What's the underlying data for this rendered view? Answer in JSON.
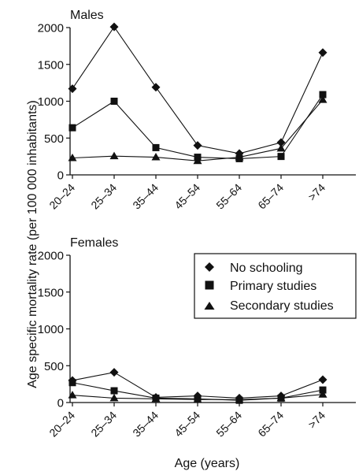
{
  "figure": {
    "ylabel": "Age specific mortality rate (per 100 000 inhabitants)",
    "xlabel": "Age (years)"
  },
  "legend": {
    "placement": "top-right of lower panel",
    "entries": [
      {
        "label": "No schooling",
        "marker": "diamond"
      },
      {
        "label": "Primary studies",
        "marker": "square"
      },
      {
        "label": "Secondary studies",
        "marker": "triangle"
      }
    ]
  },
  "chart_data": [
    {
      "type": "line",
      "title": "Males",
      "categories": [
        "20–24",
        "25–34",
        "35–44",
        "45–54",
        "55–64",
        "65–74",
        ">74"
      ],
      "ylim": [
        0,
        2000
      ],
      "yticks": [
        0,
        500,
        1000,
        1500,
        2000
      ],
      "grid": false,
      "series": [
        {
          "name": "No schooling",
          "marker": "diamond",
          "values": [
            1170,
            2010,
            1190,
            400,
            290,
            440,
            1660
          ]
        },
        {
          "name": "Primary studies",
          "marker": "square",
          "values": [
            640,
            1000,
            370,
            240,
            220,
            250,
            1090
          ]
        },
        {
          "name": "Secondary studies",
          "marker": "triangle",
          "values": [
            230,
            255,
            240,
            190,
            240,
            360,
            1020
          ]
        }
      ]
    },
    {
      "type": "line",
      "title": "Females",
      "categories": [
        "20–24",
        "25–34",
        "35–44",
        "45–54",
        "55–64",
        "65–74",
        ">74"
      ],
      "ylim": [
        0,
        2000
      ],
      "yticks": [
        0,
        500,
        1000,
        1500,
        2000
      ],
      "grid": false,
      "series": [
        {
          "name": "No schooling",
          "marker": "diamond",
          "values": [
            300,
            410,
            70,
            90,
            60,
            90,
            310
          ]
        },
        {
          "name": "Primary studies",
          "marker": "square",
          "values": [
            270,
            160,
            60,
            50,
            30,
            60,
            170
          ]
        },
        {
          "name": "Secondary studies",
          "marker": "triangle",
          "values": [
            100,
            60,
            50,
            40,
            40,
            60,
            110
          ]
        }
      ]
    }
  ]
}
